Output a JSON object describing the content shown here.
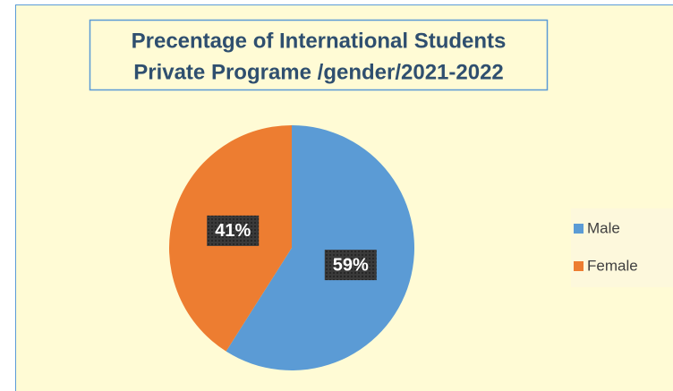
{
  "chart_data": {
    "type": "pie",
    "title": [
      "Precentage of  International Students",
      "Private Programe /gender/2021-2022"
    ],
    "categories": [
      "Male",
      "Female"
    ],
    "values": [
      59,
      41
    ],
    "value_labels": [
      "59%",
      "41%"
    ],
    "colors": [
      "#5b9bd5",
      "#ed7d31"
    ],
    "legend": "right"
  }
}
